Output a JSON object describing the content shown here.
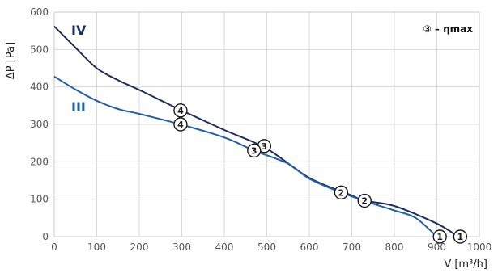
{
  "chart_data": {
    "type": "line",
    "xlabel": "V [m³/h]",
    "ylabel": "ΔP [Pa]",
    "xlim": [
      0,
      1000
    ],
    "ylim": [
      0,
      600
    ],
    "x_ticks": [
      "0",
      "100",
      "200",
      "300",
      "400",
      "500",
      "600",
      "700",
      "800",
      "900",
      "1000"
    ],
    "y_ticks": [
      "0",
      "100",
      "200",
      "300",
      "400",
      "500",
      "600"
    ],
    "grid": true,
    "legend": {
      "text": "③ – ηmax",
      "position": "top-right"
    },
    "series": [
      {
        "name": "IV",
        "color": "#1c2f5e",
        "points": [
          [
            0,
            562
          ],
          [
            50,
            505
          ],
          [
            100,
            450
          ],
          [
            150,
            418
          ],
          [
            200,
            392
          ],
          [
            300,
            337
          ],
          [
            400,
            285
          ],
          [
            500,
            235
          ],
          [
            600,
            157
          ],
          [
            700,
            110
          ],
          [
            730,
            96
          ],
          [
            800,
            82
          ],
          [
            900,
            35
          ],
          [
            950,
            0
          ]
        ],
        "markers": [
          {
            "label": "④",
            "x": 297,
            "y": 337
          },
          {
            "label": "③",
            "x": 494,
            "y": 242
          },
          {
            "label": "②",
            "x": 730,
            "y": 96
          },
          {
            "label": "①",
            "x": 955,
            "y": 0
          }
        ]
      },
      {
        "name": "III",
        "color": "#1f5fa8",
        "points": [
          [
            0,
            428
          ],
          [
            50,
            393
          ],
          [
            100,
            363
          ],
          [
            150,
            341
          ],
          [
            200,
            328
          ],
          [
            297,
            300
          ],
          [
            400,
            265
          ],
          [
            470,
            230
          ],
          [
            550,
            195
          ],
          [
            600,
            155
          ],
          [
            675,
            118
          ],
          [
            750,
            88
          ],
          [
            800,
            70
          ],
          [
            850,
            50
          ],
          [
            900,
            0
          ]
        ],
        "markers": [
          {
            "label": "④",
            "x": 297,
            "y": 300
          },
          {
            "label": "③",
            "x": 470,
            "y": 230
          },
          {
            "label": "②",
            "x": 675,
            "y": 118
          },
          {
            "label": "①",
            "x": 907,
            "y": 0
          }
        ]
      }
    ]
  }
}
